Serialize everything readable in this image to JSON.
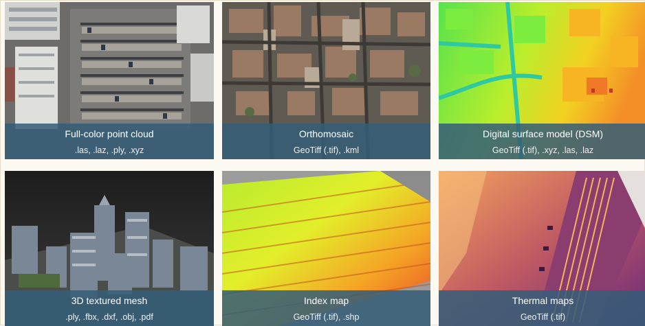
{
  "products": [
    {
      "title": "Full-color point cloud",
      "formats": ".las, .laz, .ply, .xyz",
      "image": "aerial-parking-lot-image"
    },
    {
      "title": "Orthomosaic",
      "formats": "GeoTiff (.tif), .kml",
      "image": "orthomosaic-city-image"
    },
    {
      "title": "Digital surface model (DSM)",
      "formats": "GeoTiff (.tif), .xyz, .las, .laz",
      "image": "dsm-elevation-image"
    },
    {
      "title": "3D textured mesh",
      "formats": ".ply, .fbx, .dxf, .obj, .pdf",
      "image": "3d-city-mesh-image"
    },
    {
      "title": "Index map",
      "formats": "GeoTiff (.tif), .shp",
      "image": "index-map-field-image"
    },
    {
      "title": "Thermal maps",
      "formats": "GeoTiff (.tif)",
      "image": "thermal-map-image"
    }
  ],
  "colors": {
    "caption_bg": "#345d77",
    "caption_text": "#ffffff",
    "page_bg": "#fbf9f2"
  }
}
